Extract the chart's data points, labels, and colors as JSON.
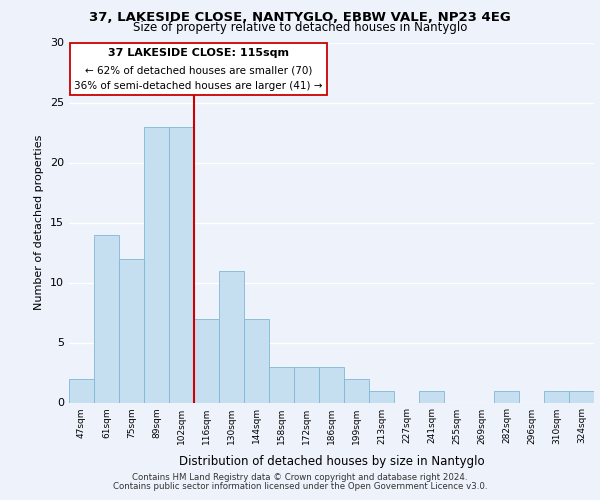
{
  "title1": "37, LAKESIDE CLOSE, NANTYGLO, EBBW VALE, NP23 4EG",
  "title2": "Size of property relative to detached houses in Nantyglo",
  "xlabel": "Distribution of detached houses by size in Nantyglo",
  "ylabel": "Number of detached properties",
  "bin_labels": [
    "47sqm",
    "61sqm",
    "75sqm",
    "89sqm",
    "102sqm",
    "116sqm",
    "130sqm",
    "144sqm",
    "158sqm",
    "172sqm",
    "186sqm",
    "199sqm",
    "213sqm",
    "227sqm",
    "241sqm",
    "255sqm",
    "269sqm",
    "282sqm",
    "296sqm",
    "310sqm",
    "324sqm"
  ],
  "bar_heights": [
    2,
    14,
    12,
    23,
    23,
    7,
    11,
    7,
    3,
    3,
    3,
    2,
    1,
    0,
    1,
    0,
    0,
    1,
    0,
    1,
    1
  ],
  "bar_color": "#c5dff0",
  "bar_edge_color": "#7fb8d8",
  "highlight_color": "#cc0000",
  "ylim": [
    0,
    30
  ],
  "yticks": [
    0,
    5,
    10,
    15,
    20,
    25,
    30
  ],
  "annotation_line1": "37 LAKESIDE CLOSE: 115sqm",
  "annotation_line2": "← 62% of detached houses are smaller (70)",
  "annotation_line3": "36% of semi-detached houses are larger (41) →",
  "footer1": "Contains HM Land Registry data © Crown copyright and database right 2024.",
  "footer2": "Contains public sector information licensed under the Open Government Licence v3.0.",
  "background_color": "#eef2fb"
}
